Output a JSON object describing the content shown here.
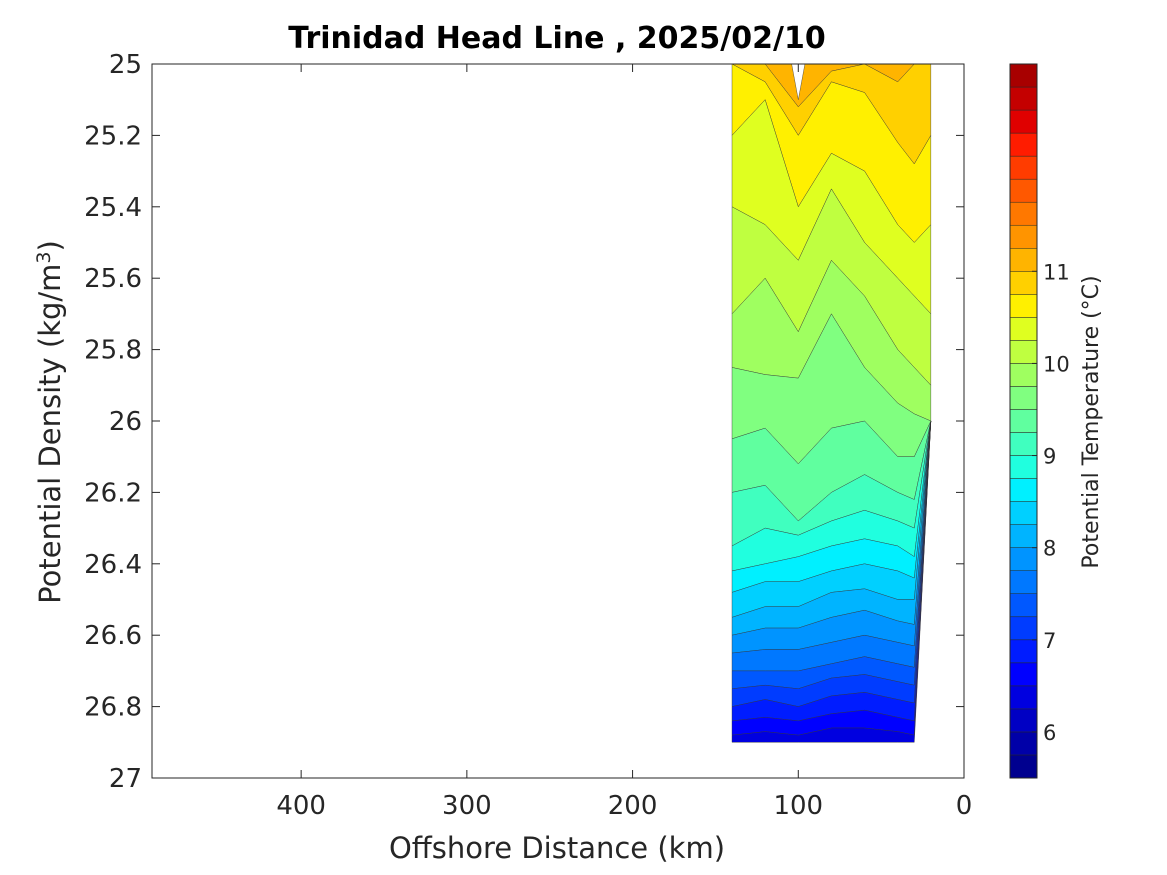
{
  "chart_data": {
    "type": "contour",
    "title": "Trinidad Head Line , 2025/02/10",
    "xlabel": "Offshore Distance (km)",
    "ylabel_main": "Potential Density (kg/m",
    "ylabel_sup": "3",
    "ylabel_end": ")",
    "colorbar_label": "Potential Temperature (°C)",
    "xlim": [
      490,
      0
    ],
    "ylim": [
      25,
      27
    ],
    "y_reversed": true,
    "x_reversed": true,
    "x_ticks": [
      400,
      300,
      200,
      100,
      0
    ],
    "x_tick_labels": [
      "400",
      "300",
      "200",
      "100",
      "0"
    ],
    "y_ticks": [
      25,
      25.2,
      25.4,
      25.6,
      25.8,
      26,
      26.2,
      26.4,
      26.6,
      26.8,
      27
    ],
    "y_tick_labels": [
      "25",
      "25.2",
      "25.4",
      "25.6",
      "25.8",
      "26",
      "26.2",
      "26.4",
      "26.6",
      "26.8",
      "27"
    ],
    "colorbar": {
      "levels_min": 5.5,
      "levels_step": 0.25,
      "level_count": 24,
      "tick_values": [
        6,
        7,
        8,
        9,
        10,
        11
      ],
      "tick_labels": [
        "6",
        "7",
        "8",
        "9",
        "10",
        "11"
      ],
      "colors": [
        "#00008f",
        "#0000a8",
        "#0000c4",
        "#0000e0",
        "#0000ff",
        "#001cff",
        "#003cff",
        "#0058ff",
        "#0078ff",
        "#0094ff",
        "#00b4ff",
        "#00d0ff",
        "#00f0ff",
        "#20ffdf",
        "#40ffbf",
        "#60ff9f",
        "#80ff80",
        "#9fff60",
        "#bfff40",
        "#dfff20",
        "#fff000",
        "#ffd000",
        "#ffb400",
        "#ff9400",
        "#ff7800",
        "#ff5800",
        "#ff3c00",
        "#ff1c00",
        "#e00000",
        "#c40000",
        "#a80000"
      ]
    },
    "stations_km": [
      140,
      120,
      100,
      80,
      60,
      40,
      30,
      20
    ],
    "stations_max_density": [
      26.9,
      26.9,
      26.9,
      26.9,
      26.9,
      26.9,
      26.9,
      26.0
    ],
    "isotherms": [
      {
        "temp": 11.0,
        "density": [
          25.0,
          25.0,
          25.12,
          25.02,
          25.0,
          25.05,
          25.0,
          25.0
        ]
      },
      {
        "temp": 10.75,
        "density": [
          25.0,
          25.05,
          25.2,
          25.05,
          25.08,
          25.22,
          25.28,
          25.2
        ]
      },
      {
        "temp": 10.5,
        "density": [
          25.2,
          25.1,
          25.4,
          25.25,
          25.3,
          25.45,
          25.5,
          25.45
        ]
      },
      {
        "temp": 10.25,
        "density": [
          25.4,
          25.45,
          25.55,
          25.35,
          25.5,
          25.6,
          25.65,
          25.7
        ]
      },
      {
        "temp": 10.0,
        "density": [
          25.7,
          25.6,
          25.75,
          25.55,
          25.65,
          25.8,
          25.85,
          25.9
        ]
      },
      {
        "temp": 9.75,
        "density": [
          25.85,
          25.87,
          25.88,
          25.7,
          25.85,
          25.95,
          25.98,
          26.0
        ]
      },
      {
        "temp": 9.5,
        "density": [
          26.05,
          26.02,
          26.12,
          26.02,
          26.0,
          26.1,
          26.1,
          26.0
        ]
      },
      {
        "temp": 9.25,
        "density": [
          26.2,
          26.18,
          26.28,
          26.2,
          26.15,
          26.2,
          26.22,
          26.0
        ]
      },
      {
        "temp": 9.0,
        "density": [
          26.35,
          26.3,
          26.32,
          26.28,
          26.25,
          26.28,
          26.3,
          26.0
        ]
      },
      {
        "temp": 8.75,
        "density": [
          26.42,
          26.4,
          26.38,
          26.35,
          26.33,
          26.35,
          26.38,
          26.0
        ]
      },
      {
        "temp": 8.5,
        "density": [
          26.48,
          26.45,
          26.45,
          26.42,
          26.4,
          26.42,
          26.44,
          26.0
        ]
      },
      {
        "temp": 8.25,
        "density": [
          26.55,
          26.52,
          26.52,
          26.48,
          26.47,
          26.5,
          26.5,
          26.0
        ]
      },
      {
        "temp": 8.0,
        "density": [
          26.6,
          26.58,
          26.58,
          26.55,
          26.53,
          26.56,
          26.57,
          26.0
        ]
      },
      {
        "temp": 7.75,
        "density": [
          26.65,
          26.64,
          26.64,
          26.62,
          26.6,
          26.62,
          26.63,
          26.0
        ]
      },
      {
        "temp": 7.5,
        "density": [
          26.7,
          26.7,
          26.7,
          26.68,
          26.66,
          26.68,
          26.69,
          26.0
        ]
      },
      {
        "temp": 7.25,
        "density": [
          26.75,
          26.74,
          26.75,
          26.72,
          26.71,
          26.73,
          26.74,
          26.0
        ]
      },
      {
        "temp": 7.0,
        "density": [
          26.8,
          26.78,
          26.8,
          26.77,
          26.76,
          26.78,
          26.79,
          26.0
        ]
      },
      {
        "temp": 6.75,
        "density": [
          26.84,
          26.83,
          26.84,
          26.82,
          26.81,
          26.83,
          26.84,
          26.0
        ]
      },
      {
        "temp": 6.5,
        "density": [
          26.88,
          26.87,
          26.88,
          26.86,
          26.86,
          26.87,
          26.88,
          26.0
        ]
      }
    ]
  }
}
